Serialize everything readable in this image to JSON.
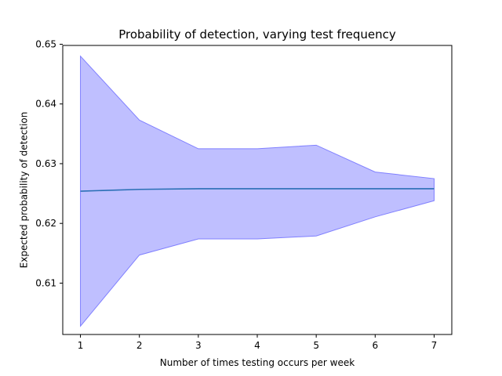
{
  "chart_data": {
    "type": "line",
    "title": "Probability of detection, varying test frequency",
    "xlabel": "Number of times testing occurs per week",
    "ylabel": "Expected probability of detection",
    "x": [
      1,
      2,
      3,
      4,
      5,
      6,
      7
    ],
    "series": [
      {
        "values": [
          0.6254,
          0.6257,
          0.6258,
          0.6258,
          0.6258,
          0.6258,
          0.6258
        ],
        "color": "#2a6fb5"
      }
    ],
    "band": {
      "lower": [
        0.6028,
        0.6147,
        0.6174,
        0.6174,
        0.6179,
        0.6211,
        0.6238
      ],
      "upper": [
        0.648,
        0.6373,
        0.6325,
        0.6325,
        0.6331,
        0.6286,
        0.6275
      ],
      "fill_color": "#8080ff",
      "fill_opacity": 0.5,
      "edge_color": "#8080ff"
    },
    "xlim": [
      0.7,
      7.3
    ],
    "ylim": [
      0.6014,
      0.6498
    ],
    "xticks": [
      1,
      2,
      3,
      4,
      5,
      6,
      7
    ],
    "xtick_labels": [
      "1",
      "2",
      "3",
      "4",
      "5",
      "6",
      "7"
    ],
    "yticks": [
      0.61,
      0.62,
      0.63,
      0.64,
      0.65
    ],
    "ytick_labels": [
      "0.61",
      "0.62",
      "0.63",
      "0.64",
      "0.65"
    ],
    "grid": false,
    "legend": "none"
  }
}
